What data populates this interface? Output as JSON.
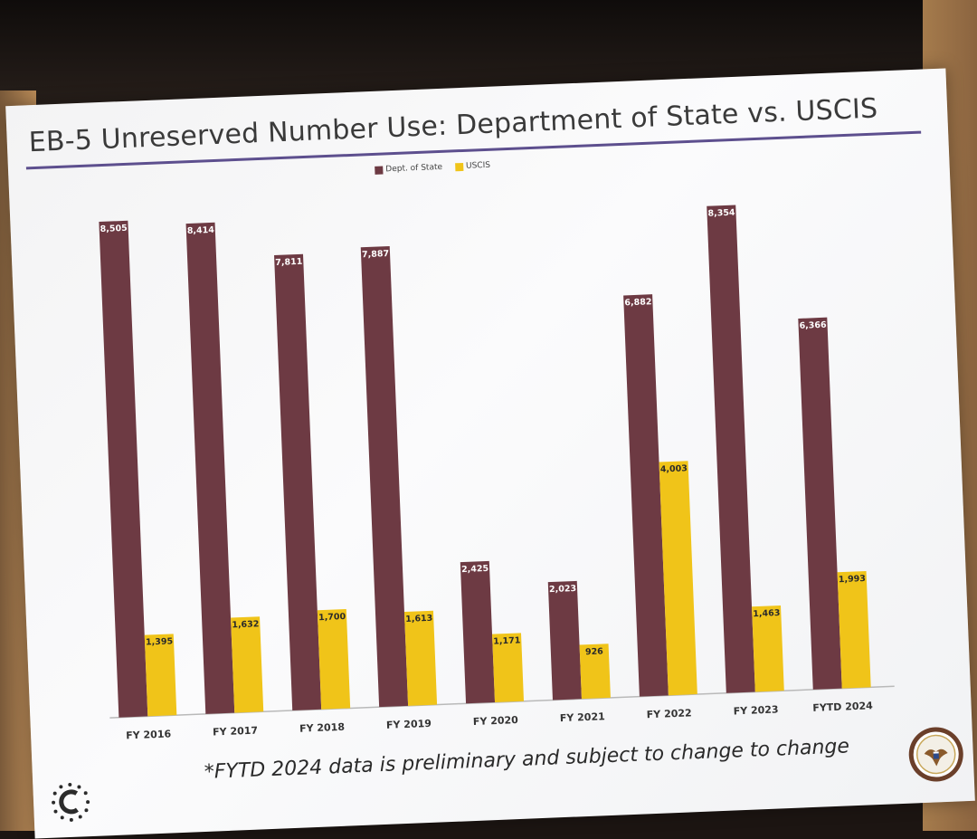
{
  "slide": {
    "title": "EB-5 Unreserved Number Use: Department of State vs. USCIS",
    "footnote": "*FYTD 2024 data is preliminary and subject to change to change"
  },
  "colors": {
    "dos": "#6d3a43",
    "uscis": "#f0c419",
    "title_rule": "#5d4f8e"
  },
  "icons": {
    "left_logo": "dotted-c-logo-icon",
    "right_logo": "department-of-state-seal-icon"
  },
  "chart_data": {
    "type": "bar",
    "categories": [
      "FY 2016",
      "FY 2017",
      "FY 2018",
      "FY 2019",
      "FY 2020",
      "FY 2021",
      "FY 2022",
      "FY 2023",
      "FYTD 2024"
    ],
    "series": [
      {
        "name": "Dept. of State",
        "values": [
          8505,
          8414,
          7811,
          7887,
          2425,
          2023,
          6882,
          8354,
          6366
        ],
        "labels": [
          "8,505",
          "8,414",
          "7,811",
          "7,887",
          "2,425",
          "2,023",
          "6,882",
          "8,354",
          "6,366"
        ]
      },
      {
        "name": "USCIS",
        "values": [
          1395,
          1632,
          1700,
          1613,
          1171,
          926,
          4003,
          1463,
          1993
        ],
        "labels": [
          "1,395",
          "1,632",
          "1,700",
          "1,613",
          "1,171",
          "926",
          "4,003",
          "1,463",
          "1,993"
        ]
      }
    ],
    "ylim": [
      0,
      9000
    ],
    "grid": false,
    "legend": "top-center"
  }
}
